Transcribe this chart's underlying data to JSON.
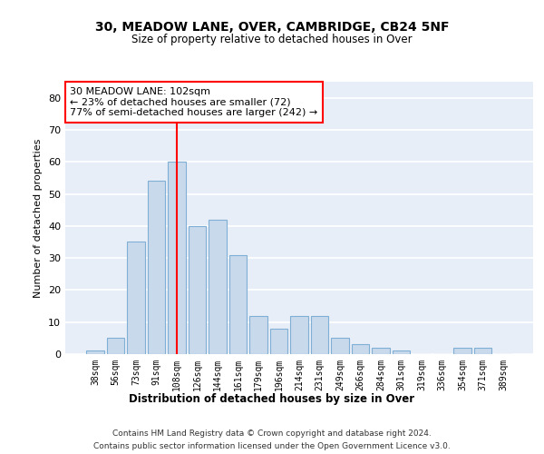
{
  "title1": "30, MEADOW LANE, OVER, CAMBRIDGE, CB24 5NF",
  "title2": "Size of property relative to detached houses in Over",
  "xlabel": "Distribution of detached houses by size in Over",
  "ylabel": "Number of detached properties",
  "categories": [
    "38sqm",
    "56sqm",
    "73sqm",
    "91sqm",
    "108sqm",
    "126sqm",
    "144sqm",
    "161sqm",
    "179sqm",
    "196sqm",
    "214sqm",
    "231sqm",
    "249sqm",
    "266sqm",
    "284sqm",
    "301sqm",
    "319sqm",
    "336sqm",
    "354sqm",
    "371sqm",
    "389sqm"
  ],
  "values": [
    1,
    5,
    35,
    54,
    60,
    40,
    42,
    31,
    12,
    8,
    12,
    12,
    5,
    3,
    2,
    1,
    0,
    0,
    2,
    2,
    0
  ],
  "bar_color": "#c9d9ec",
  "bar_edge_color": "#7fafd4",
  "vline_x": 4,
  "vline_color": "red",
  "annotation_text": "30 MEADOW LANE: 102sqm\n← 23% of detached houses are smaller (72)\n77% of semi-detached houses are larger (242) →",
  "annotation_box_color": "red",
  "ylim": [
    0,
    85
  ],
  "yticks": [
    0,
    10,
    20,
    30,
    40,
    50,
    60,
    70,
    80
  ],
  "background_color": "#e8eef7",
  "footer1": "Contains HM Land Registry data © Crown copyright and database right 2024.",
  "footer2": "Contains public sector information licensed under the Open Government Licence v3.0."
}
